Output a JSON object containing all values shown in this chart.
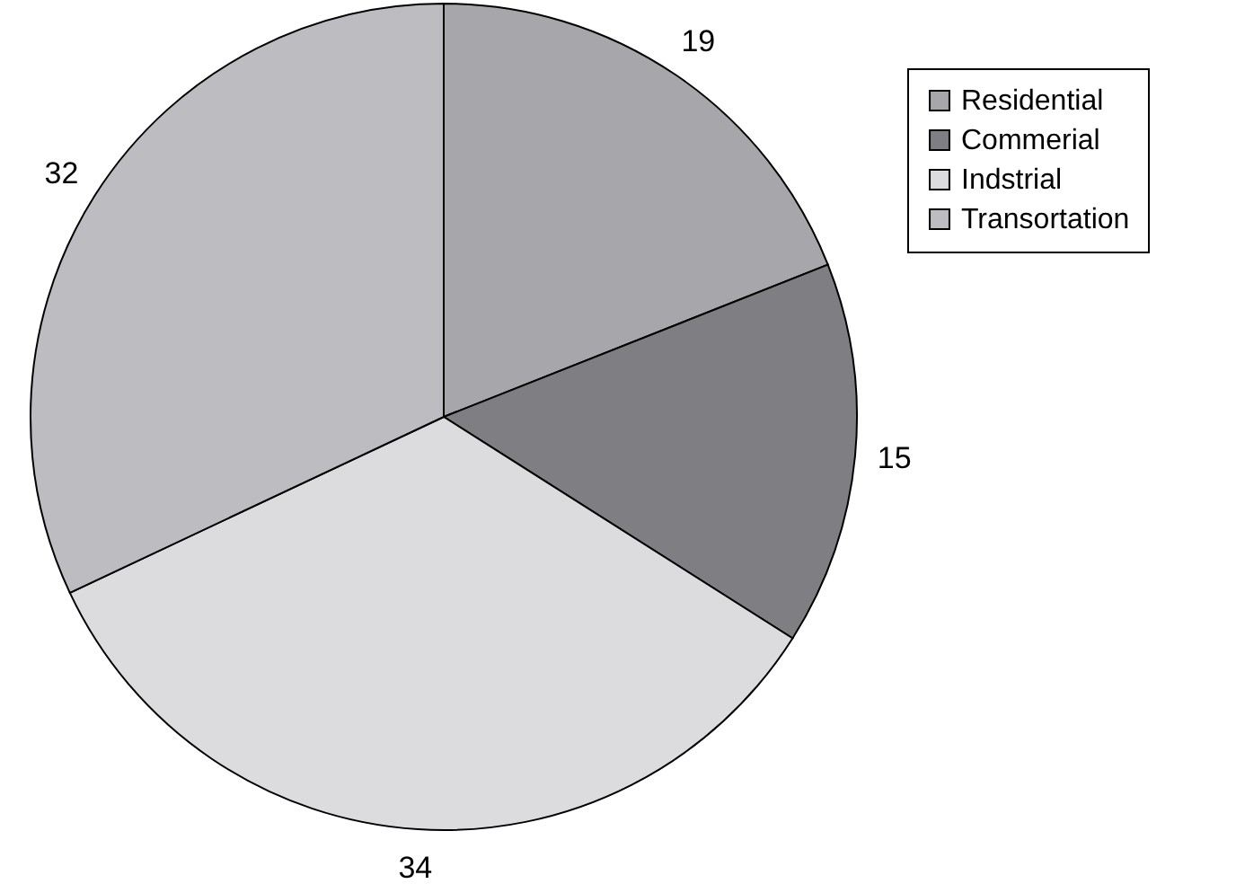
{
  "chart_data": {
    "type": "pie",
    "categories": [
      "Residential",
      "Commerial",
      "Indstrial",
      "Transortation"
    ],
    "values": [
      19,
      15,
      34,
      32
    ],
    "colors": [
      "#a7a7ab",
      "#7f7f83",
      "#dcdcde",
      "#bdbdc1"
    ],
    "data_labels": true,
    "legend": "top right"
  }
}
